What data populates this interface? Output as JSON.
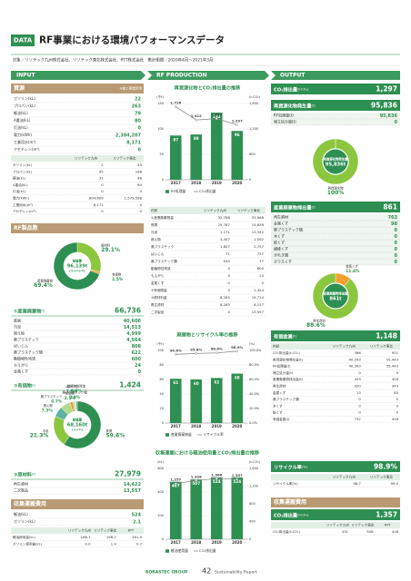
{
  "header": {
    "badge": "DATA",
    "title": "RF事業における環境パフォーマンスデータ",
    "scope": "対象／リソテック九州株式会社、リソテック東北株式会社、RTT株式会社　集計期間／2020年4月〜2021年3月"
  },
  "columns": [
    "INPUT",
    "RF PRODUCTION",
    "OUTPUT"
  ],
  "sections": [
    {
      "title": "資源",
      "note": "※重工事業所用",
      "items": [
        [
          "ガソリン(kL)",
          "22"
        ],
        [
          "プロパン(kL)",
          "263"
        ],
        [
          "軽油(kL)",
          "79"
        ],
        [
          "A重油(kL)",
          "80"
        ],
        [
          "灯油(kL)",
          "0"
        ],
        [
          "電力(kWh)",
          "2,384,207"
        ],
        [
          "工業用水(m³)",
          "8,171"
        ],
        [
          "アセチレン(m³)",
          "0"
        ]
      ],
      "table": {
        "head": [
          "リソテック九州",
          "リソテック東北"
        ],
        "rows": [
          [
            "ガソリン(kL)",
            "2",
            "20"
          ],
          [
            "プロパン(kL)",
            "95",
            "168"
          ],
          [
            "軽油(kL)",
            "31",
            "48"
          ],
          [
            "A重油(kL)",
            "0",
            "80"
          ],
          [
            "灯油(kL)",
            "0",
            "0"
          ],
          [
            "電力(kWh)",
            "804,609",
            "1,579,598"
          ],
          [
            "工業用水(m³)",
            "8,171",
            "0"
          ],
          [
            "アセチレン(m³)",
            "0",
            "0"
          ]
        ]
      }
    },
    {
      "title": "RF製品数"
    },
    {
      "label": "①産業廃棄物",
      "unit": "(t)",
      "value": "66,736",
      "items": [
        [
          "鉄屑",
          "40,606"
        ],
        [
          "汚泥",
          "14,513"
        ],
        [
          "燃え殻",
          "4,999"
        ],
        [
          "廃プラスチック",
          "4,564"
        ],
        [
          "ばいじん",
          "808"
        ],
        [
          "廃プラスチック類",
          "622"
        ],
        [
          "動植物性残渣",
          "600"
        ],
        [
          "もえがら",
          "24"
        ],
        [
          "金属くず",
          "0"
        ]
      ]
    },
    {
      "label": "②有価物",
      "unit": "(t)",
      "value": "1,424"
    },
    {
      "label": "③原材料",
      "unit": "(t)",
      "value": "27,979",
      "items": [
        [
          "再生資材",
          "14,422"
        ],
        [
          "二次製品",
          "13,557"
        ]
      ]
    },
    {
      "title": "収集運搬費用",
      "items": [
        [
          "軽油(kL)",
          "524"
        ],
        [
          "ガソリン(kL)",
          "2.1"
        ]
      ],
      "table": {
        "head": [
          "リソテック九州",
          "リソテック東北",
          "RTT"
        ],
        "rows": [
          [
            "軽油使用量(kL)",
            "166.1",
            "196.2",
            "161.9"
          ],
          [
            "ガソリン使用量(kL)",
            "0.0",
            "1.4",
            "0.7"
          ]
        ]
      }
    },
    {
      "table": {
        "head": [
          "内訳",
          "リソテック九州",
          "リソテック東北"
        ],
        "rows": [
          [
            "①産業廃棄物量",
            "32,768",
            "33,968"
          ],
          [
            "鉄屑",
            "25,767",
            "14,839"
          ],
          [
            "汚泥",
            "1,171",
            "13,342"
          ],
          [
            "燃え殻",
            "3,407",
            "1,592"
          ],
          [
            "廃プラスチック",
            "1,807",
            "2,757"
          ],
          [
            "ばいじん",
            "71",
            "737"
          ],
          [
            "廃プラスチック類",
            "545",
            "77"
          ],
          [
            "動植物性残渣",
            "0",
            "600"
          ],
          [
            "もえがら",
            "0",
            "24"
          ],
          [
            "金属くず",
            "0",
            "0"
          ],
          [
            "②有価物量",
            "0",
            "1,424"
          ],
          [
            "③原材料量",
            "8,265",
            "19,714"
          ],
          [
            "再生資材",
            "8,265",
            "6,157"
          ],
          [
            "二次製品",
            "0",
            "13,557"
          ]
        ]
      }
    },
    {
      "label": "CO₂排出量",
      "unit": "(t-CO₂)",
      "value": "1,297"
    },
    {
      "label": "再資源化物発生量",
      "unit": "(t)",
      "value": "95,836",
      "items": [
        [
          "RF処理量(t)",
          "95,836"
        ],
        [
          "埋立処分量(t)",
          "0"
        ]
      ]
    },
    {
      "label": "産業廃棄物排出量",
      "unit": "(t)",
      "value": "861",
      "items": [
        [
          "再生資材",
          "763"
        ],
        [
          "金属くず",
          "98"
        ],
        [
          "廃プラスチック類",
          "0"
        ],
        [
          "木くず",
          "0"
        ],
        [
          "紙くず",
          "0"
        ],
        [
          "繊維くず",
          "0"
        ],
        [
          "がれき類",
          "0"
        ],
        [
          "ガラスくず",
          "0"
        ]
      ]
    },
    {
      "label": "有価金属",
      "unit": "(t)",
      "value": "1,148",
      "table": {
        "head": [
          "内訳",
          "リソテック九州",
          "リソテック東北"
        ],
        "rows": [
          [
            "CO₂排出量(t-CO₂)",
            "366",
            "931"
          ],
          [
            "再資源化物発生量(t)",
            "40,393",
            "55,443"
          ],
          [
            "RF処理量(t)",
            "40,393",
            "55,443"
          ],
          [
            "埋立処分量(t)",
            "0",
            "0"
          ],
          [
            "産業廃棄物排出量(t)",
            "433",
            "428"
          ],
          [
            "再生資材",
            "420",
            "343"
          ],
          [
            "金属くず",
            "13",
            "85"
          ],
          [
            "廃プラスチック類",
            "0",
            "0"
          ],
          [
            "木くず",
            "0",
            "0"
          ],
          [
            "紙くず",
            "0",
            "0"
          ],
          [
            "有価金属(t)",
            "732",
            "416"
          ]
        ]
      }
    },
    {
      "label": "リサイクル率",
      "unit": "(%)",
      "value": "98.9%",
      "table": {
        "head": [
          "リソテック九州",
          "リソテック東北"
        ],
        "rows": [
          [
            "リサイクル率(%)",
            "98.7",
            "99.0"
          ]
        ]
      }
    },
    {
      "title": "収集運搬費用",
      "label": "CO₂排出量",
      "unit": "(t-CO₂)",
      "value": "1,357",
      "table": {
        "head": [
          "リソテック九州",
          "リソテック東北",
          "RTT"
        ],
        "rows": [
          [
            "CO₂排出量(t-CO₂)",
            "431",
            "508",
            "418"
          ]
        ]
      }
    }
  ],
  "chart_data": [
    {
      "type": "bar",
      "title": "再資源化物とCO₂排出量の推移",
      "categories": [
        "2017",
        "2018",
        "2019",
        "2020"
      ],
      "y_label": "(千t)",
      "y2_label": "(t-CO₂)",
      "ylim": [
        0,
        150
      ],
      "yticks": [
        0,
        50,
        100,
        150
      ],
      "y2lim": [
        0,
        1800
      ],
      "y2ticks": [
        0,
        600,
        {
          "value": 1200,
          "label": "1,200"
        },
        {
          "value": 1800,
          "label": "1,800"
        }
      ],
      "series": [
        {
          "name": "RF処理量",
          "type": "bar",
          "color": "#2e8f52",
          "values": [
            87,
            89,
            132,
            96
          ]
        },
        {
          "name": "CO₂排出量",
          "type": "line",
          "axis": "y2",
          "color": "#8a8a8a",
          "values": [
            1726,
            1412,
            1442,
            1297
          ],
          "value_labels": [
            "1,726",
            "1,412",
            "1,442",
            "1,297"
          ]
        }
      ]
    },
    {
      "type": "bar",
      "title": "廃棄物とリサイクル率の推移",
      "categories": [
        "2017",
        "2018",
        "2019",
        "2020"
      ],
      "y_label": "(千t)",
      "y2_label": "(%)",
      "ylim": [
        0,
        100
      ],
      "yticks": [
        0,
        20,
        40,
        60,
        80,
        100
      ],
      "y2lim": [
        0,
        100
      ],
      "y2ticks": [
        {
          "value": 0,
          "label": "0.0%"
        },
        {
          "value": 20,
          "label": "20.0%"
        },
        {
          "value": 40,
          "label": "40.0%"
        },
        {
          "value": 60,
          "label": "60.0%"
        },
        {
          "value": 80,
          "label": "80.0%"
        },
        {
          "value": 100,
          "label": "100.0%"
        }
      ],
      "series": [
        {
          "name": "産業廃棄物量",
          "type": "bar",
          "color": "#2e8f52",
          "values": [
            61,
            60,
            62,
            68
          ]
        },
        {
          "name": "リサイクル率",
          "type": "line",
          "axis": "y2",
          "color": "#8a8a8a",
          "values": [
            94.6,
            95.8,
            96.6,
            98.9
          ],
          "value_labels": [
            "94.6%",
            "95.8%",
            "96.6%",
            "98.9%"
          ]
        }
      ]
    },
    {
      "type": "bar",
      "title": "収集運搬における軽油使用量とCO₂排出量の推移",
      "categories": [
        "2017",
        "2018",
        "2019",
        "2020"
      ],
      "y_label": "(kL)",
      "y2_label": "(t-CO₂)",
      "ylim": [
        0,
        600
      ],
      "yticks": [
        0,
        200,
        400,
        600
      ],
      "y2lim": [
        0,
        1600
      ],
      "y2ticks": [
        0,
        400,
        800,
        {
          "value": 1200,
          "label": "1,200"
        },
        {
          "value": 1600,
          "label": "1,600"
        }
      ],
      "series": [
        {
          "name": "軽油使用量",
          "type": "bar",
          "color": "#2e8f52",
          "values": [
            487,
            507,
            524,
            524
          ]
        },
        {
          "name": "CO₂排出量",
          "type": "line",
          "axis": "y2",
          "color": "#8a8a8a",
          "values": [
            1257,
            1328,
            1366,
            1357
          ],
          "value_labels": [
            "1,257",
            "1,328",
            "1,366",
            "1,357"
          ]
        }
      ]
    },
    {
      "type": "pie",
      "categories": [
        "原材料",
        "有価物",
        "産業廃棄物"
      ],
      "values": [
        29.1,
        1.5,
        69.4
      ],
      "value_labels": [
        "29.1%",
        "1.5%",
        "69.4%"
      ],
      "colors": [
        "#8cc63f",
        "#f0a030",
        "#2e8f52"
      ],
      "center": [
        "総重量",
        "96,139t",
        "(①+②+③)"
      ]
    },
    {
      "type": "pie",
      "categories": [
        "鉄屑",
        "汚泥",
        "燃え殻",
        "廃プラスチック",
        "有価物",
        "ばいじん",
        "廃プラスチック類",
        "動植物性残渣"
      ],
      "values": [
        59.6,
        21.3,
        7.3,
        6.7,
        2.1,
        1.2,
        0.9,
        0.9
      ],
      "value_labels": [
        "59.6%",
        "21.3%",
        "7.3%",
        "6.7%",
        "2.1%",
        "1.2%",
        "0.9%",
        "0.9%"
      ],
      "colors": [
        "#2e8f52",
        "#8cc63f",
        "#5bb3a0",
        "#b5d98a",
        "#f0a030",
        "#9ccfb0",
        "#d6e9a8",
        "#6fa86f"
      ],
      "center": [
        "総重量",
        "68,160t",
        "(①+②)"
      ]
    },
    {
      "type": "pie",
      "categories": [
        "再資源化物"
      ],
      "values": [
        100
      ],
      "value_labels": [
        "100%"
      ],
      "colors": [
        "#8cc63f"
      ],
      "center": [
        "再資源化物発生量",
        "95,836t"
      ]
    },
    {
      "type": "pie",
      "categories": [
        "金属くず",
        "再生資材"
      ],
      "values": [
        11.4,
        88.6
      ],
      "value_labels": [
        "11.4%",
        "88.6%"
      ],
      "colors": [
        "#f0a030",
        "#8cc63f"
      ],
      "center": [
        "産業廃棄物排出量",
        "861t"
      ]
    }
  ],
  "footer": {
    "brand": "RORASTEC GROUP",
    "page": "42",
    "report": "Sustainability Report"
  }
}
